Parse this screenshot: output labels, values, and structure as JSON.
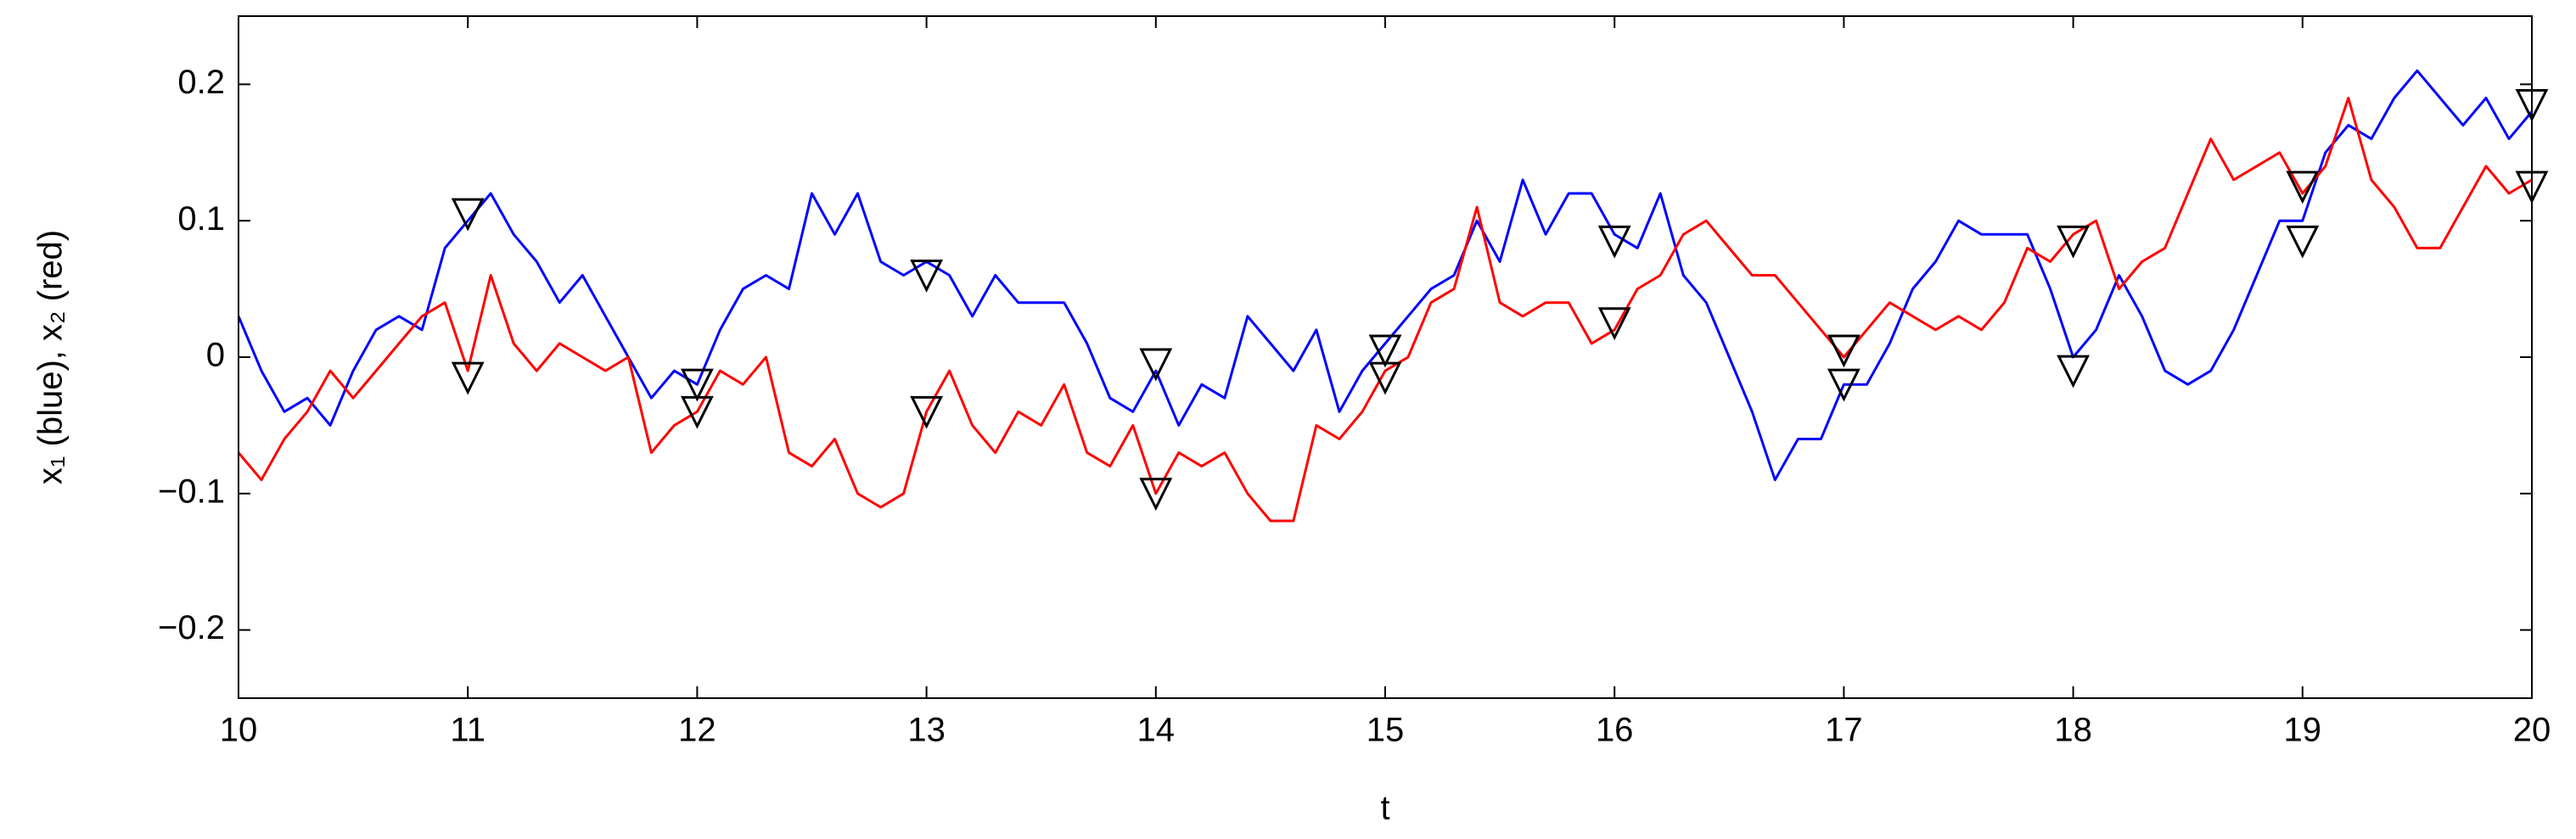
{
  "chart_data": {
    "type": "line",
    "xlabel": "t",
    "ylabel": "x₁ (blue),  x₂ (red)",
    "xlim": [
      10,
      20
    ],
    "ylim": [
      -0.25,
      0.25
    ],
    "xticks": [
      10,
      11,
      12,
      13,
      14,
      15,
      16,
      17,
      18,
      19,
      20
    ],
    "yticks": [
      {
        "value": -0.2,
        "label": "−0.2"
      },
      {
        "value": -0.1,
        "label": "−0.1"
      },
      0,
      0.1,
      0.2
    ],
    "series": [
      {
        "mode": "line",
        "color": "#0000ff",
        "x": [
          10,
          10.1,
          10.2,
          10.3,
          10.4,
          10.5,
          10.6,
          10.7,
          10.8,
          10.9,
          11,
          11.1,
          11.2,
          11.3,
          11.4,
          11.5,
          11.6,
          11.7,
          11.8,
          11.9,
          12,
          12.1,
          12.2,
          12.3,
          12.4,
          12.5,
          12.6,
          12.7,
          12.8,
          12.9,
          13,
          13.1,
          13.2,
          13.3,
          13.4,
          13.5,
          13.6,
          13.7,
          13.8,
          13.9,
          14,
          14.1,
          14.2,
          14.3,
          14.4,
          14.5,
          14.6,
          14.7,
          14.8,
          14.9,
          15,
          15.1,
          15.2,
          15.3,
          15.4,
          15.5,
          15.6,
          15.7,
          15.8,
          15.9,
          16,
          16.1,
          16.2,
          16.3,
          16.4,
          16.5,
          16.6,
          16.7,
          16.8,
          16.9,
          17,
          17.1,
          17.2,
          17.3,
          17.4,
          17.5,
          17.6,
          17.7,
          17.8,
          17.9,
          18,
          18.1,
          18.2,
          18.3,
          18.4,
          18.5,
          18.6,
          18.7,
          18.8,
          18.9,
          19,
          19.1,
          19.2,
          19.3,
          19.4,
          19.5,
          19.6,
          19.7,
          19.8,
          19.9,
          20
        ],
        "values": [
          0.03,
          -0.01,
          -0.04,
          -0.03,
          -0.05,
          -0.01,
          0.02,
          0.03,
          0.02,
          0.08,
          0.1,
          0.12,
          0.09,
          0.07,
          0.04,
          0.06,
          0.03,
          0.0,
          -0.03,
          -0.01,
          -0.02,
          0.02,
          0.05,
          0.06,
          0.05,
          0.12,
          0.09,
          0.12,
          0.07,
          0.06,
          0.07,
          0.06,
          0.03,
          0.06,
          0.04,
          0.04,
          0.04,
          0.01,
          -0.03,
          -0.04,
          -0.01,
          -0.05,
          -0.02,
          -0.03,
          0.03,
          0.01,
          -0.01,
          0.02,
          -0.04,
          -0.01,
          0.01,
          0.03,
          0.05,
          0.06,
          0.1,
          0.07,
          0.13,
          0.09,
          0.12,
          0.12,
          0.09,
          0.08,
          0.12,
          0.06,
          0.04,
          0.0,
          -0.04,
          -0.09,
          -0.06,
          -0.06,
          -0.02,
          -0.02,
          0.01,
          0.05,
          0.07,
          0.1,
          0.09,
          0.09,
          0.09,
          0.05,
          0.0,
          0.02,
          0.06,
          0.03,
          -0.01,
          -0.02,
          -0.01,
          0.02,
          0.06,
          0.1,
          0.1,
          0.15,
          0.17,
          0.16,
          0.19,
          0.21,
          0.19,
          0.17,
          0.19,
          0.16,
          0.18
        ]
      },
      {
        "mode": "line",
        "color": "#ff0000",
        "x": [
          10,
          10.1,
          10.2,
          10.3,
          10.4,
          10.5,
          10.6,
          10.7,
          10.8,
          10.9,
          11,
          11.1,
          11.2,
          11.3,
          11.4,
          11.5,
          11.6,
          11.7,
          11.8,
          11.9,
          12,
          12.1,
          12.2,
          12.3,
          12.4,
          12.5,
          12.6,
          12.7,
          12.8,
          12.9,
          13,
          13.1,
          13.2,
          13.3,
          13.4,
          13.5,
          13.6,
          13.7,
          13.8,
          13.9,
          14,
          14.1,
          14.2,
          14.3,
          14.4,
          14.5,
          14.6,
          14.7,
          14.8,
          14.9,
          15,
          15.1,
          15.2,
          15.3,
          15.4,
          15.5,
          15.6,
          15.7,
          15.8,
          15.9,
          16,
          16.1,
          16.2,
          16.3,
          16.4,
          16.5,
          16.6,
          16.7,
          16.8,
          16.9,
          17,
          17.1,
          17.2,
          17.3,
          17.4,
          17.5,
          17.6,
          17.7,
          17.8,
          17.9,
          18,
          18.1,
          18.2,
          18.3,
          18.4,
          18.5,
          18.6,
          18.7,
          18.8,
          18.9,
          19,
          19.1,
          19.2,
          19.3,
          19.4,
          19.5,
          19.6,
          19.7,
          19.8,
          19.9,
          20
        ],
        "values": [
          -0.07,
          -0.09,
          -0.06,
          -0.04,
          -0.01,
          -0.03,
          -0.01,
          0.01,
          0.03,
          0.04,
          -0.01,
          0.06,
          0.01,
          -0.01,
          0.01,
          0.0,
          -0.01,
          0.0,
          -0.07,
          -0.05,
          -0.04,
          -0.01,
          -0.02,
          0.0,
          -0.07,
          -0.08,
          -0.06,
          -0.1,
          -0.11,
          -0.1,
          -0.04,
          -0.01,
          -0.05,
          -0.07,
          -0.04,
          -0.05,
          -0.02,
          -0.07,
          -0.08,
          -0.05,
          -0.1,
          -0.07,
          -0.08,
          -0.07,
          -0.1,
          -0.12,
          -0.12,
          -0.05,
          -0.06,
          -0.04,
          -0.01,
          0.0,
          0.04,
          0.05,
          0.11,
          0.04,
          0.03,
          0.04,
          0.04,
          0.01,
          0.02,
          0.05,
          0.06,
          0.09,
          0.1,
          0.08,
          0.06,
          0.06,
          0.04,
          0.02,
          0.0,
          0.02,
          0.04,
          0.03,
          0.02,
          0.03,
          0.02,
          0.04,
          0.08,
          0.07,
          0.09,
          0.1,
          0.05,
          0.07,
          0.08,
          0.12,
          0.16,
          0.13,
          0.14,
          0.15,
          0.12,
          0.14,
          0.19,
          0.13,
          0.11,
          0.08,
          0.08,
          0.11,
          0.14,
          0.12,
          0.13
        ]
      },
      {
        "mode": "markers",
        "marker": "triangle-down",
        "color": "#000000",
        "x": [
          11,
          12,
          13,
          14,
          15,
          16,
          17,
          18,
          19,
          20
        ],
        "values": [
          0.105,
          -0.02,
          0.06,
          -0.005,
          0.005,
          0.085,
          -0.02,
          -0.01,
          0.085,
          0.185
        ]
      },
      {
        "mode": "markers",
        "marker": "triangle-down",
        "color": "#000000",
        "x": [
          11,
          12,
          13,
          14,
          15,
          16,
          17,
          18,
          19,
          20
        ],
        "values": [
          -0.015,
          -0.04,
          -0.04,
          -0.1,
          -0.015,
          0.025,
          0.005,
          0.085,
          0.125,
          0.125
        ]
      }
    ]
  }
}
